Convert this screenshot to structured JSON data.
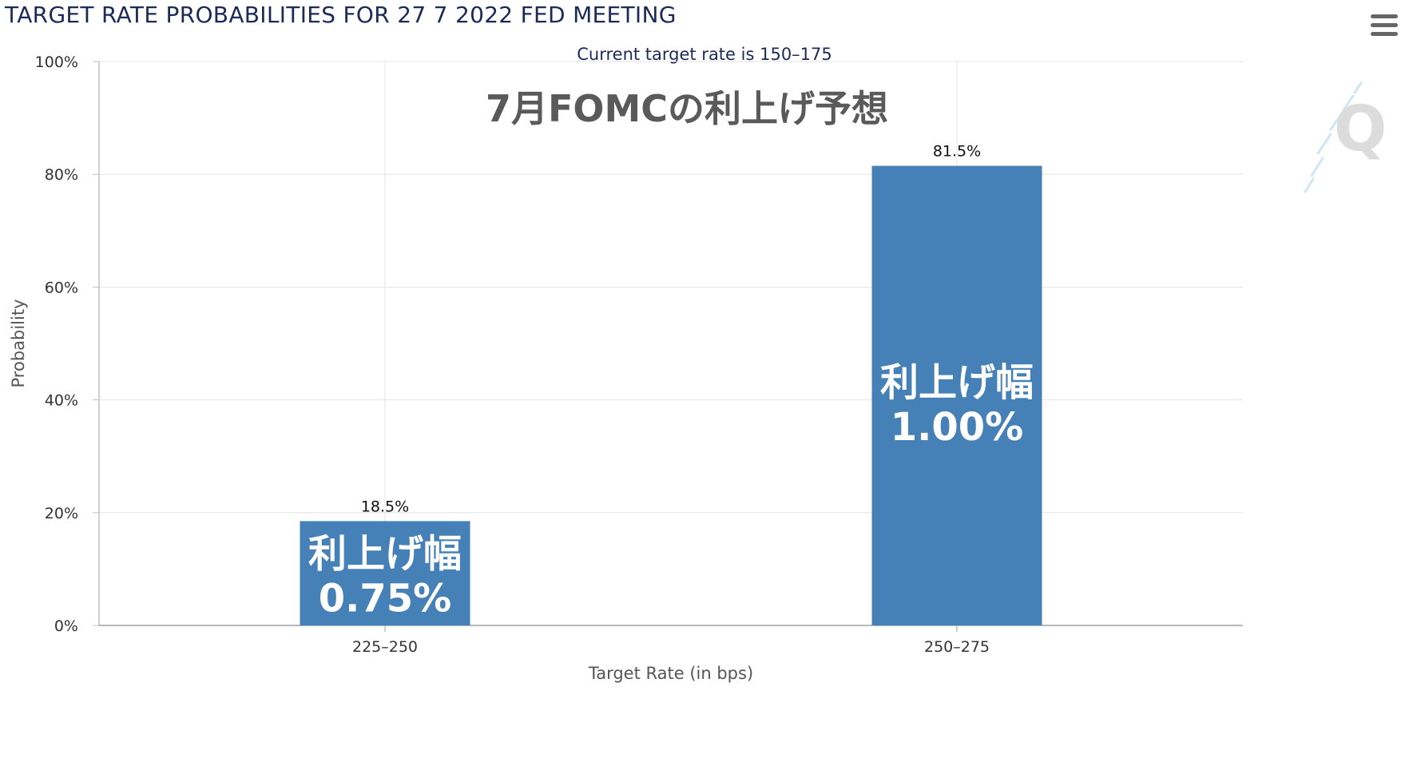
{
  "header": {
    "title": "TARGET RATE PROBABILITIES FOR 27 7 2022 FED MEETING",
    "subtitle": "Current target rate is 150–175"
  },
  "overlay_heading": "7月FOMCの利上げ予想",
  "menu_icon": "hamburger-menu-icon",
  "logo_icon": "q-logo-icon",
  "chart_data": {
    "type": "bar",
    "categories": [
      "225–250",
      "250–275"
    ],
    "values": [
      18.5,
      81.5
    ],
    "data_labels": [
      "18.5%",
      "81.5%"
    ],
    "bar_annotations": [
      [
        "利上げ幅",
        "0.75%"
      ],
      [
        "利上げ幅",
        "1.00%"
      ]
    ],
    "xlabel": "Target Rate (in bps)",
    "ylabel": "Probability",
    "ylim": [
      0,
      100
    ],
    "yticks": [
      0,
      20,
      40,
      60,
      80,
      100
    ],
    "ytick_labels": [
      "0%",
      "20%",
      "40%",
      "60%",
      "80%",
      "100%"
    ],
    "grid": true,
    "bar_color": "#4580b6",
    "text_color": "#1c2a57"
  }
}
